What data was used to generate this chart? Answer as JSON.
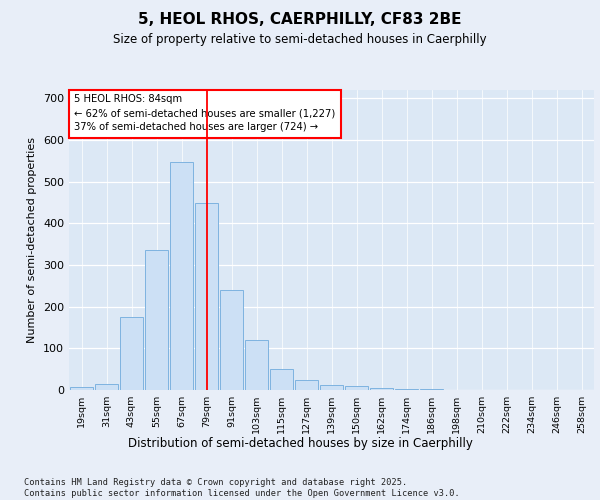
{
  "title1": "5, HEOL RHOS, CAERPHILLY, CF83 2BE",
  "title2": "Size of property relative to semi-detached houses in Caerphilly",
  "xlabel": "Distribution of semi-detached houses by size in Caerphilly",
  "ylabel": "Number of semi-detached properties",
  "categories": [
    "19sqm",
    "31sqm",
    "43sqm",
    "55sqm",
    "67sqm",
    "79sqm",
    "91sqm",
    "103sqm",
    "115sqm",
    "127sqm",
    "139sqm",
    "150sqm",
    "162sqm",
    "174sqm",
    "186sqm",
    "198sqm",
    "210sqm",
    "222sqm",
    "234sqm",
    "246sqm",
    "258sqm"
  ],
  "values": [
    8,
    15,
    175,
    335,
    548,
    450,
    240,
    120,
    50,
    25,
    12,
    10,
    5,
    3,
    2,
    1,
    1,
    0,
    0,
    0,
    0
  ],
  "bar_color": "#cce0f5",
  "bar_edge_color": "#7eb3e0",
  "vline_position": 5.0,
  "vline_color": "red",
  "annotation_title": "5 HEOL RHOS: 84sqm",
  "annotation_line1": "← 62% of semi-detached houses are smaller (1,227)",
  "annotation_line2": "37% of semi-detached houses are larger (724) →",
  "ylim": [
    0,
    720
  ],
  "yticks": [
    0,
    100,
    200,
    300,
    400,
    500,
    600,
    700
  ],
  "footer1": "Contains HM Land Registry data © Crown copyright and database right 2025.",
  "footer2": "Contains public sector information licensed under the Open Government Licence v3.0.",
  "fig_bg_color": "#e8eef8",
  "plot_bg_color": "#dce8f5"
}
